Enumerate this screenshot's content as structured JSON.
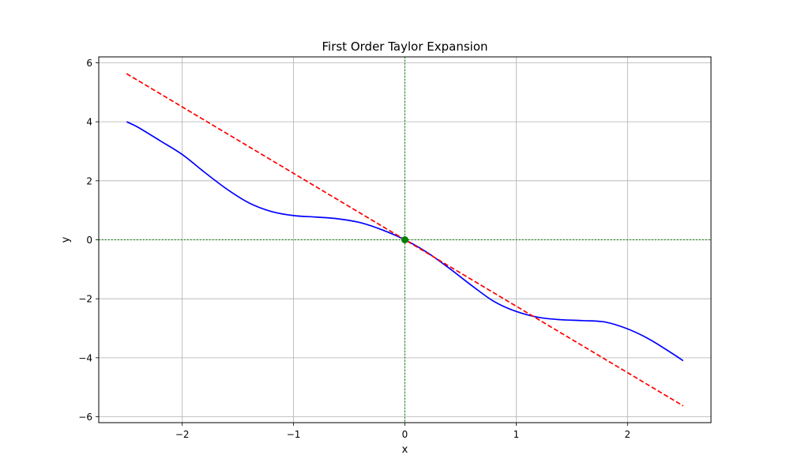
{
  "chart_data": {
    "type": "line",
    "title": "First Order Taylor Expansion",
    "xlabel": "x",
    "ylabel": "y",
    "xlim": [
      -2.75,
      2.75
    ],
    "ylim": [
      -6.2,
      6.2
    ],
    "xticks": [
      -2,
      -1,
      0,
      1,
      2
    ],
    "yticks": [
      -6,
      -4,
      -2,
      0,
      2,
      4,
      6
    ],
    "xtick_labels": [
      "−2",
      "−1",
      "0",
      "1",
      "2"
    ],
    "ytick_labels": [
      "−6",
      "−4",
      "−2",
      "0",
      "2",
      "4",
      "6"
    ],
    "grid": true,
    "legend": false,
    "reference_lines": [
      {
        "orientation": "vertical",
        "value": 0,
        "color": "#008000",
        "style": "dotted"
      },
      {
        "orientation": "horizontal",
        "value": 0,
        "color": "#008000",
        "style": "dotted"
      }
    ],
    "series": [
      {
        "color": "#0000ff",
        "style": "solid",
        "x": [
          -2.5,
          -2.4,
          -2.2,
          -2.0,
          -1.8,
          -1.6,
          -1.4,
          -1.2,
          -1.0,
          -0.8,
          -0.6,
          -0.4,
          -0.2,
          0.0,
          0.2,
          0.4,
          0.6,
          0.8,
          1.0,
          1.2,
          1.4,
          1.6,
          1.8,
          2.0,
          2.2,
          2.4,
          2.5
        ],
        "y": [
          4.0,
          3.82,
          3.36,
          2.89,
          2.29,
          1.72,
          1.25,
          0.96,
          0.82,
          0.77,
          0.71,
          0.58,
          0.33,
          0.0,
          -0.43,
          -0.97,
          -1.55,
          -2.09,
          -2.43,
          -2.63,
          -2.71,
          -2.74,
          -2.79,
          -3.02,
          -3.38,
          -3.85,
          -4.1
        ]
      },
      {
        "color": "#ff0000",
        "style": "dashed",
        "x": [
          -2.5,
          2.5
        ],
        "y": [
          5.63,
          -5.63
        ]
      }
    ],
    "points": [
      {
        "x": 0,
        "y": 0,
        "color": "#008000"
      }
    ]
  }
}
